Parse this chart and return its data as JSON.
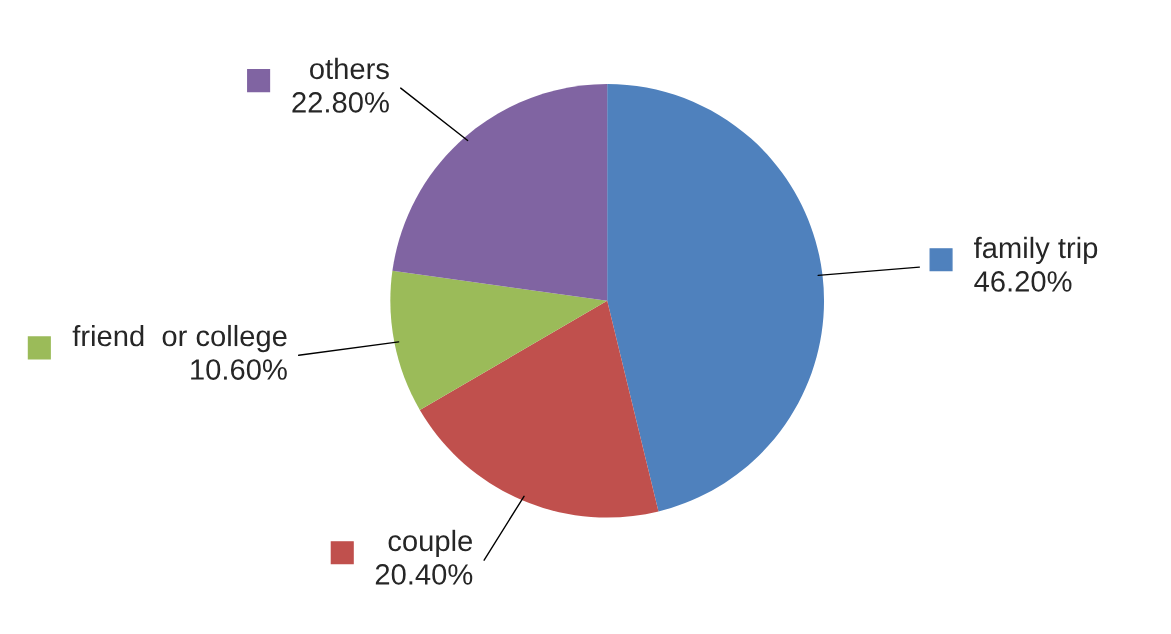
{
  "chart_data": {
    "type": "pie",
    "categories": [
      "family trip",
      "couple",
      "friend  or college",
      "others"
    ],
    "values": [
      46.2,
      20.4,
      10.6,
      22.8
    ],
    "colors": [
      "#4f81bd",
      "#c0504d",
      "#9bbb59",
      "#8064a2"
    ],
    "value_labels": [
      "46.20%",
      "20.40%",
      "10.60%",
      "22.80%"
    ],
    "legend": "bottom left"
  }
}
